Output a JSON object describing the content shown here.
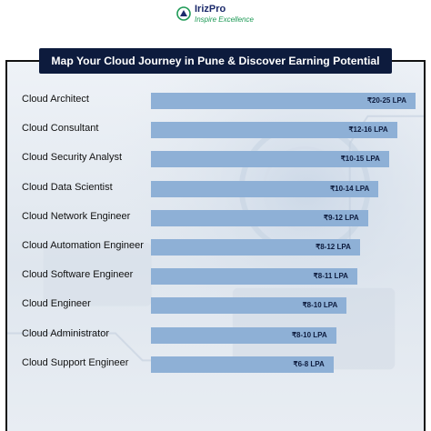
{
  "brand": {
    "name": "IrizPro",
    "tagline": "Inspire Excellence"
  },
  "colors": {
    "title_bg": "#0d1b3d",
    "bar": "#8eb0d6",
    "brand_navy": "#1b2a6b",
    "brand_green": "#1e9a56"
  },
  "chart_data": {
    "type": "bar",
    "orientation": "horizontal",
    "title": "Map Your Cloud Journey in Pune & Discover Earning Potential",
    "categories": [
      "Cloud Architect",
      "Cloud Consultant",
      "Cloud Security Analyst",
      "Cloud Data Scientist",
      "Cloud Network Engineer",
      "Cloud Automation Engineer",
      "Cloud Software Engineer",
      "Cloud Engineer",
      "Cloud Administrator",
      "Cloud Support Engineer"
    ],
    "labels": [
      "₹20-25 LPA",
      "₹12-16  LPA",
      "₹10-15 LPA",
      "₹10-14 LPA",
      "₹9-12 LPA",
      "₹8-12 LPA",
      "₹8-11 LPA",
      "₹8-10 LPA",
      "₹8-10 LPA",
      "₹6-8 LPA"
    ],
    "ranges": [
      [
        20,
        25
      ],
      [
        12,
        16
      ],
      [
        10,
        15
      ],
      [
        10,
        14
      ],
      [
        9,
        12
      ],
      [
        8,
        12
      ],
      [
        8,
        11
      ],
      [
        8,
        10
      ],
      [
        8,
        10
      ],
      [
        6,
        8
      ]
    ],
    "values": [
      100,
      93,
      90,
      86,
      82,
      79,
      78,
      74,
      70,
      69
    ],
    "grid": false,
    "legend": "none"
  }
}
